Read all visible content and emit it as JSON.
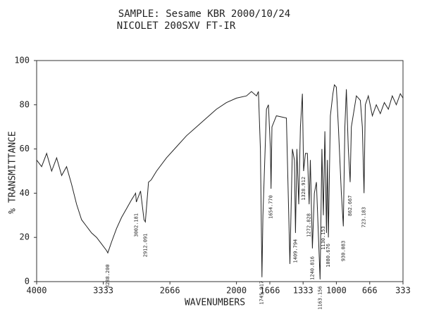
{
  "chart_data": {
    "type": "line",
    "title": "SAMPLE: Sesame  KBR 2000/10/24",
    "subtitle": "NICOLET 200SXV FT-IR",
    "x_label": "WAVENUMBERS",
    "y_label": "% TRANSMITTANCE",
    "xlim": [
      4000,
      333
    ],
    "ylim": [
      0,
      100
    ],
    "xticks": [
      4000,
      3333,
      2666,
      2000,
      1666,
      1333,
      1000,
      666,
      333
    ],
    "yticks": [
      0,
      20,
      40,
      60,
      80,
      100
    ],
    "color": "#222222",
    "x": [
      4000,
      3950,
      3900,
      3850,
      3800,
      3750,
      3700,
      3650,
      3600,
      3550,
      3500,
      3450,
      3400,
      3350,
      3300,
      3288,
      3250,
      3200,
      3150,
      3100,
      3050,
      3009,
      3002,
      2960,
      2925,
      2912,
      2880,
      2854,
      2800,
      2700,
      2600,
      2500,
      2400,
      2300,
      2200,
      2100,
      2000,
      1900,
      1850,
      1800,
      1780,
      1760,
      1745,
      1735,
      1700,
      1680,
      1660,
      1654,
      1645,
      1600,
      1500,
      1465,
      1440,
      1420,
      1409,
      1395,
      1377,
      1360,
      1340,
      1328,
      1310,
      1290,
      1272,
      1260,
      1240,
      1220,
      1200,
      1163,
      1145,
      1130,
      1115,
      1099,
      1090,
      1080,
      1060,
      1035,
      1020,
      1000,
      980,
      950,
      930,
      915,
      900,
      880,
      862,
      850,
      800,
      760,
      740,
      723,
      710,
      680,
      640,
      600,
      560,
      520,
      480,
      440,
      400,
      360,
      333
    ],
    "values": [
      55,
      52,
      58,
      50,
      56,
      48,
      52,
      44,
      35,
      28,
      25,
      22,
      20,
      17,
      14,
      13,
      18,
      24,
      29,
      33,
      37,
      40,
      36,
      41,
      28,
      27,
      45,
      46,
      50,
      56,
      61,
      66,
      70,
      74,
      78,
      81,
      83,
      84,
      86,
      84,
      86,
      60,
      2,
      30,
      78,
      80,
      60,
      42,
      70,
      75,
      74,
      8,
      60,
      55,
      22,
      60,
      35,
      70,
      85,
      50,
      58,
      58,
      35,
      55,
      15,
      40,
      45,
      1,
      60,
      30,
      68,
      22,
      55,
      20,
      75,
      85,
      89,
      88,
      70,
      40,
      25,
      70,
      87,
      60,
      45,
      70,
      84,
      82,
      70,
      40,
      80,
      84,
      75,
      80,
      76,
      81,
      78,
      84,
      80,
      85,
      83
    ],
    "annotations": [
      "3288.200",
      "3002.181",
      "2912.091",
      "1654.770",
      "1745.917",
      "1409.794",
      "1328.912",
      "1272.828",
      "1240.816",
      "1163.156",
      "1130.153",
      "1080.676",
      "930.083",
      "862.667",
      "723.183"
    ]
  }
}
